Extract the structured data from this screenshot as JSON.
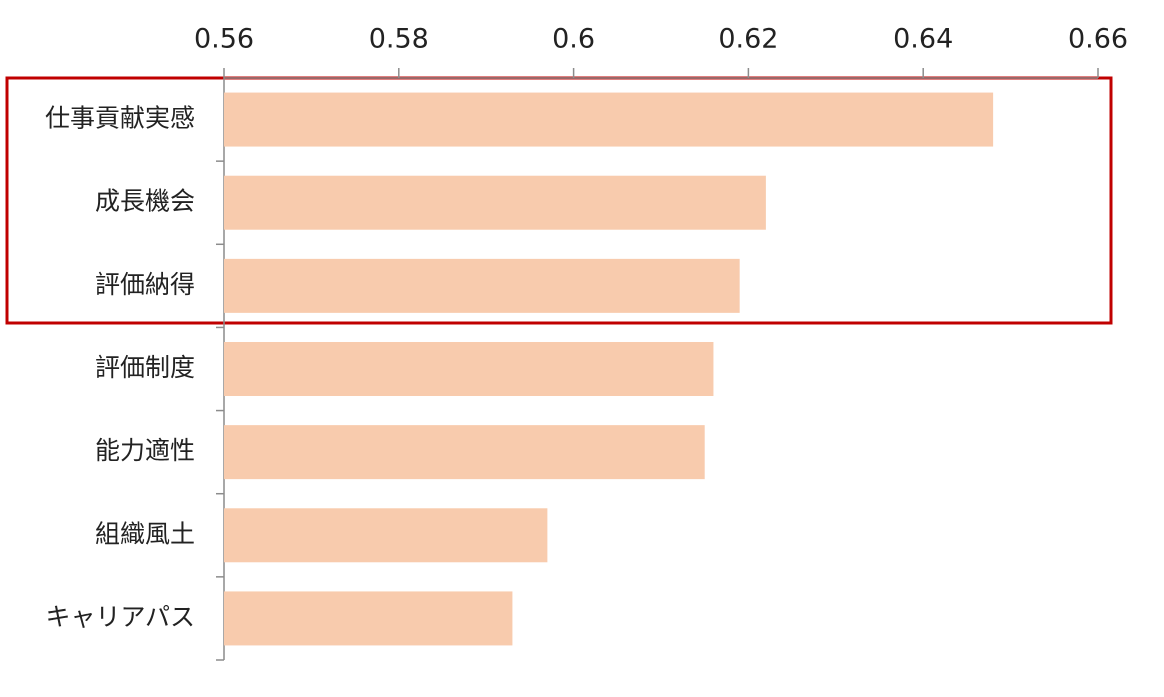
{
  "chart_data": {
    "type": "bar",
    "categories": [
      "仕事貢献実感",
      "成長機会",
      "評価納得",
      "評価制度",
      "能力適性",
      "組織風土",
      "キャリアパス"
    ],
    "values": [
      0.648,
      0.622,
      0.619,
      0.616,
      0.615,
      0.597,
      0.593
    ],
    "color": "#f8cbad",
    "xlim": [
      0.56,
      0.66
    ],
    "xticks": [
      0.56,
      0.58,
      0.6,
      0.62,
      0.64,
      0.66
    ]
  }
}
